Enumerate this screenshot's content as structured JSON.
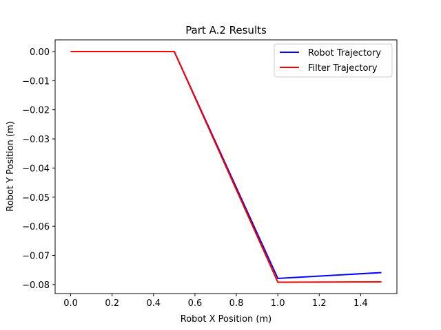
{
  "chart_data": {
    "type": "line",
    "title": "Part A.2 Results",
    "xlabel": "Robot X Position (m)",
    "ylabel": "Robot Y Position (m)",
    "xlim": [
      -0.075,
      1.575
    ],
    "ylim": [
      -0.0831,
      0.004
    ],
    "xticks": [
      0.0,
      0.2,
      0.4,
      0.6,
      0.8,
      1.0,
      1.2,
      1.4
    ],
    "xtick_labels": [
      "0.0",
      "0.2",
      "0.4",
      "0.6",
      "0.8",
      "1.0",
      "1.2",
      "1.4"
    ],
    "yticks": [
      0.0,
      -0.01,
      -0.02,
      -0.03,
      -0.04,
      -0.05,
      -0.06,
      -0.07,
      -0.08
    ],
    "ytick_labels": [
      "0.00",
      "−0.01",
      "−0.02",
      "−0.03",
      "−0.04",
      "−0.05",
      "−0.06",
      "−0.07",
      "−0.08"
    ],
    "grid": false,
    "legend_position": "top-right",
    "series": [
      {
        "name": "Robot Trajectory",
        "color": "#0000ff",
        "x": [
          0.0,
          0.5,
          1.0,
          1.5
        ],
        "y": [
          0.0,
          0.0,
          -0.0779,
          -0.0759
        ]
      },
      {
        "name": "Filter Trajectory",
        "color": "#ff0000",
        "x": [
          0.0,
          0.5,
          1.0,
          1.5
        ],
        "y": [
          0.0,
          0.0,
          -0.0792,
          -0.0791
        ]
      }
    ]
  }
}
